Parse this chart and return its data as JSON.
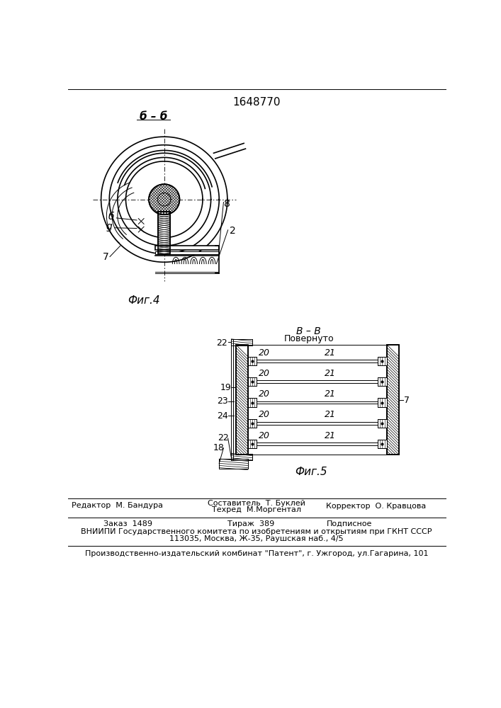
{
  "patent_number": "1648770",
  "section_label_top_left": "б – б",
  "fig4_label": "Фиг.4",
  "fig5_label": "Фиг.5",
  "background_color": "#ffffff",
  "line_color": "#000000",
  "footer_line1_col1": "Редактор  М. Бандура",
  "footer_col2_line1": "Составитель  Т. Буклей",
  "footer_col2_line2": "Техред  М.Моргентал",
  "footer_line1_col3": "Корректор  О. Кравцова",
  "footer_line2_col1": "Заказ  1489",
  "footer_line2_col2": "Тираж  389",
  "footer_line2_col3": "Подписное",
  "footer_line3": "ВНИИПИ Государственного комитета по изобретениям и открытиям при ГКНТ СССР",
  "footer_line4": "113035, Москва, Ж-35, Раушская наб., 4/5",
  "footer_line5": "Производственно-издательский комбинат \"Патент\", г. Ужгород, ул.Гагарина, 101"
}
